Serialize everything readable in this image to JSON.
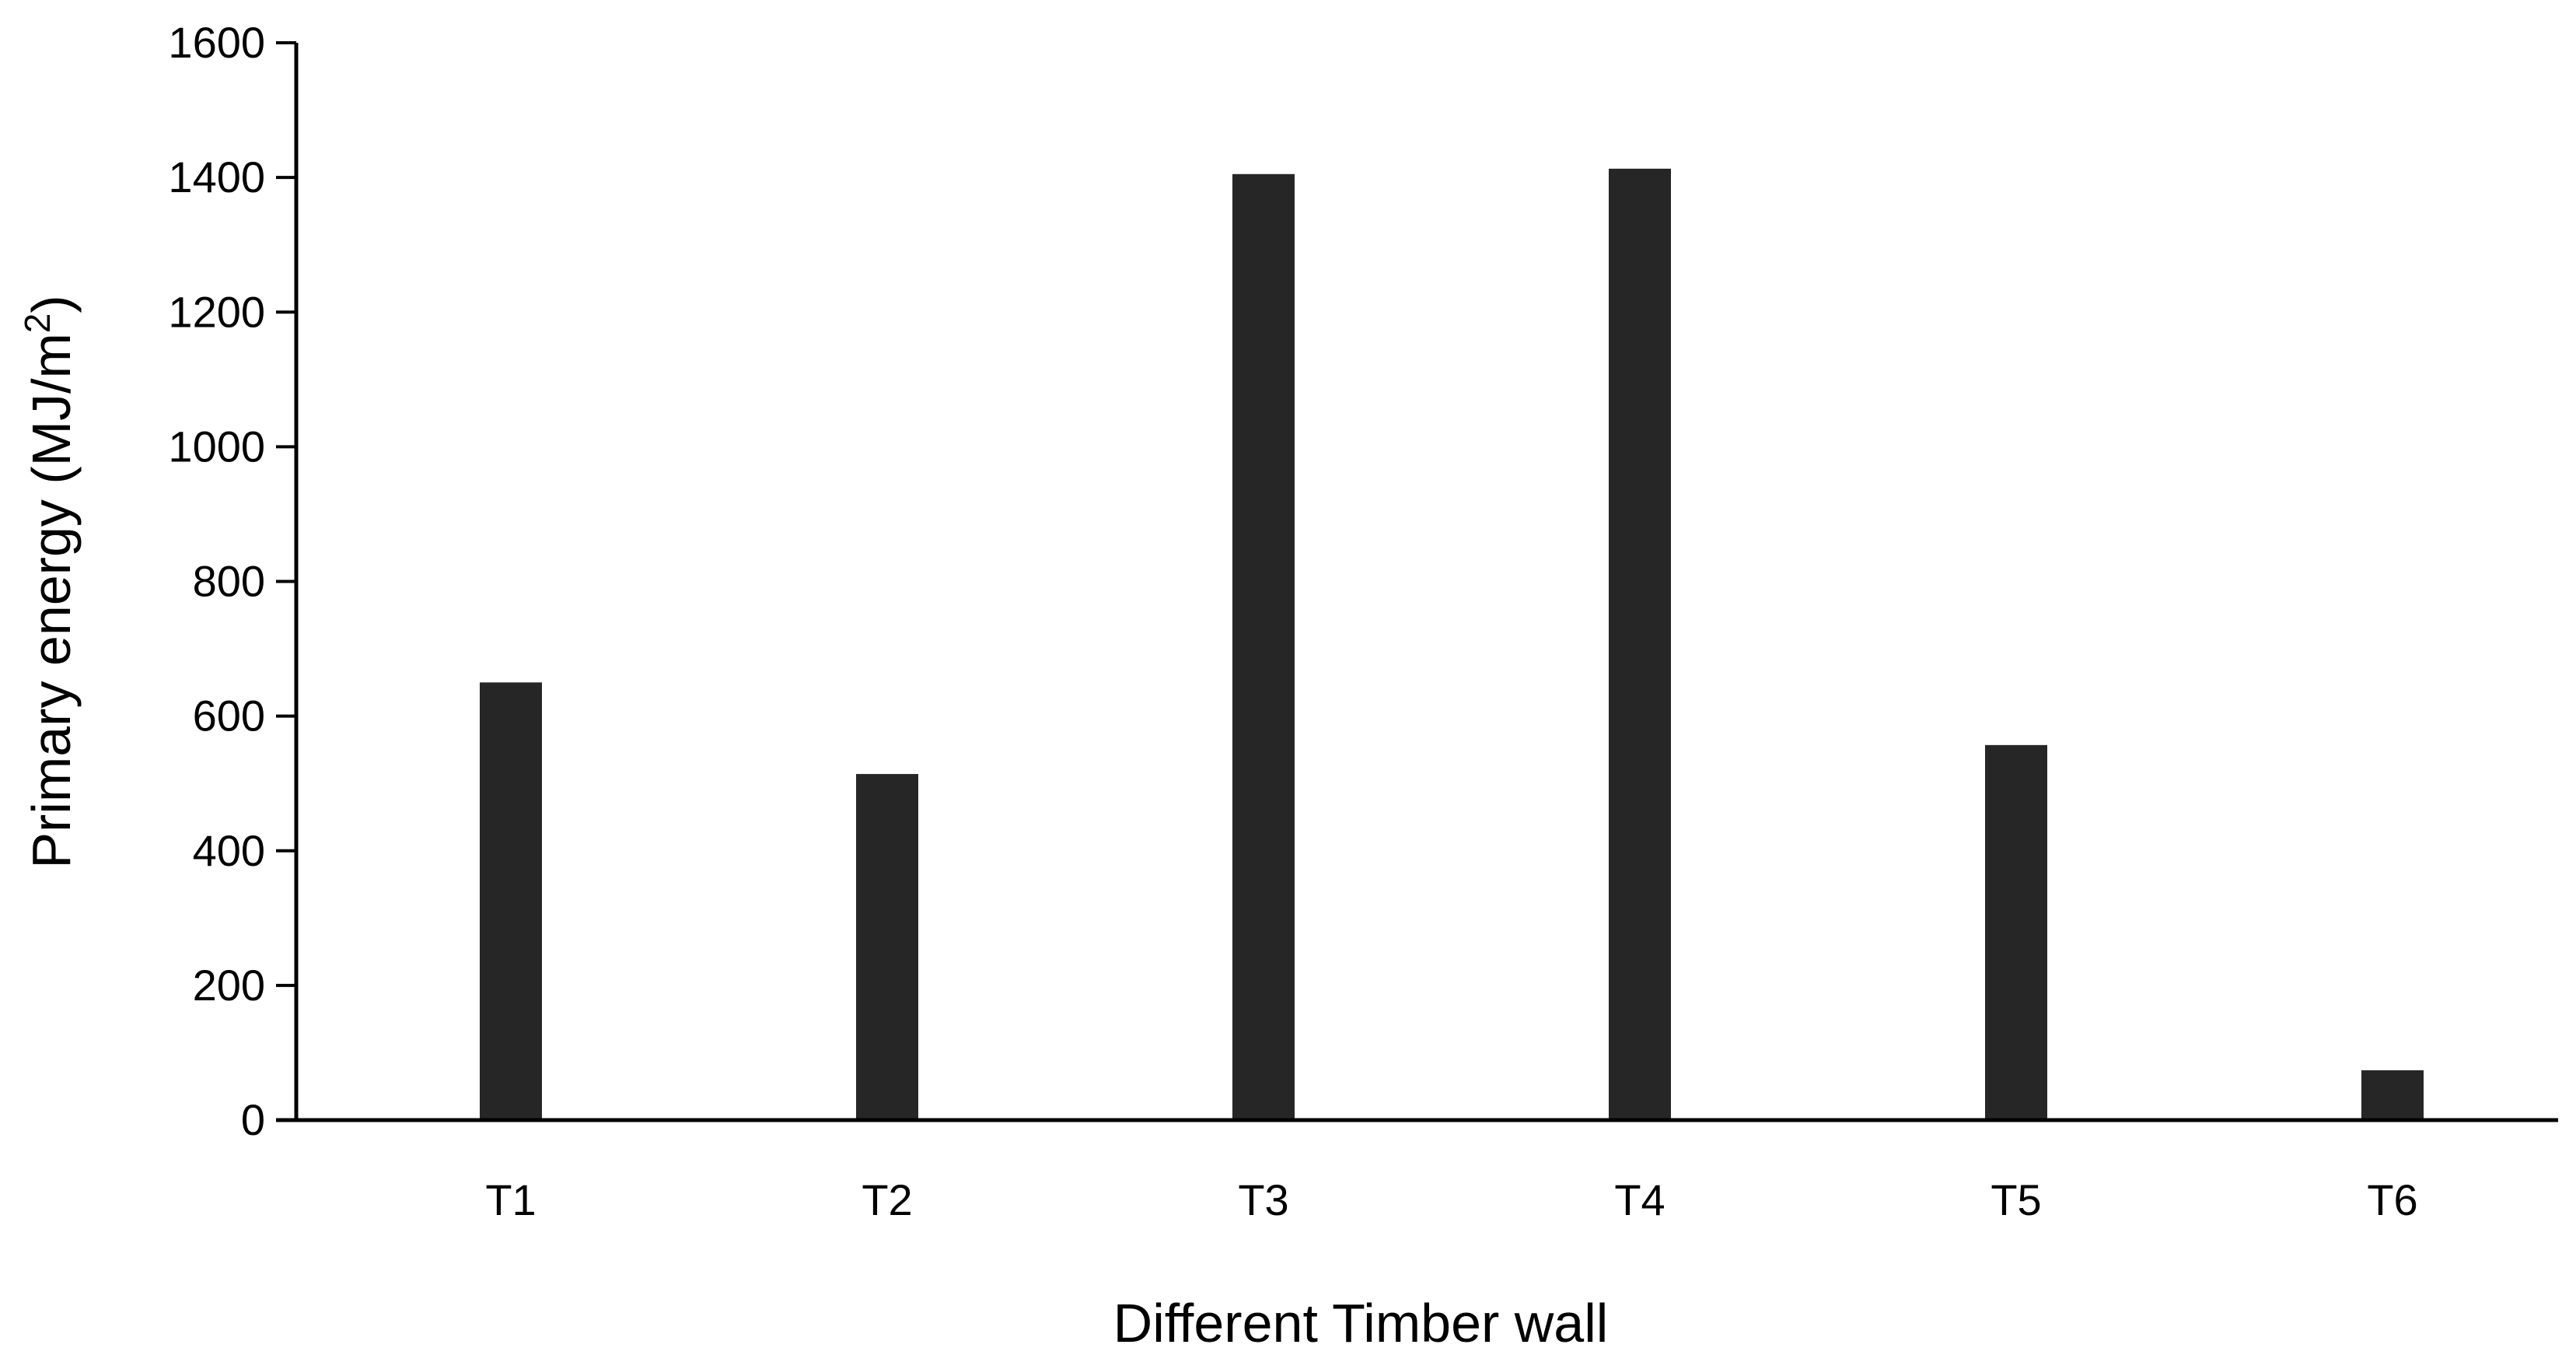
{
  "chart_data": {
    "type": "bar",
    "title": "",
    "xlabel": "Different Timber wall",
    "ylabel_main": "Primary energy (MJ/m",
    "ylabel_sup": "2",
    "ylabel_close": ")",
    "categories": [
      "T1",
      "T2",
      "T3",
      "T4",
      "T5",
      "T6"
    ],
    "values": [
      650,
      514,
      1405,
      1413,
      557,
      74
    ],
    "ylim": [
      0,
      1600
    ],
    "yticks": [
      0,
      200,
      400,
      600,
      800,
      1000,
      1200,
      1400,
      1600
    ],
    "grid": false,
    "legend": "none",
    "bar_color": "#262626"
  }
}
